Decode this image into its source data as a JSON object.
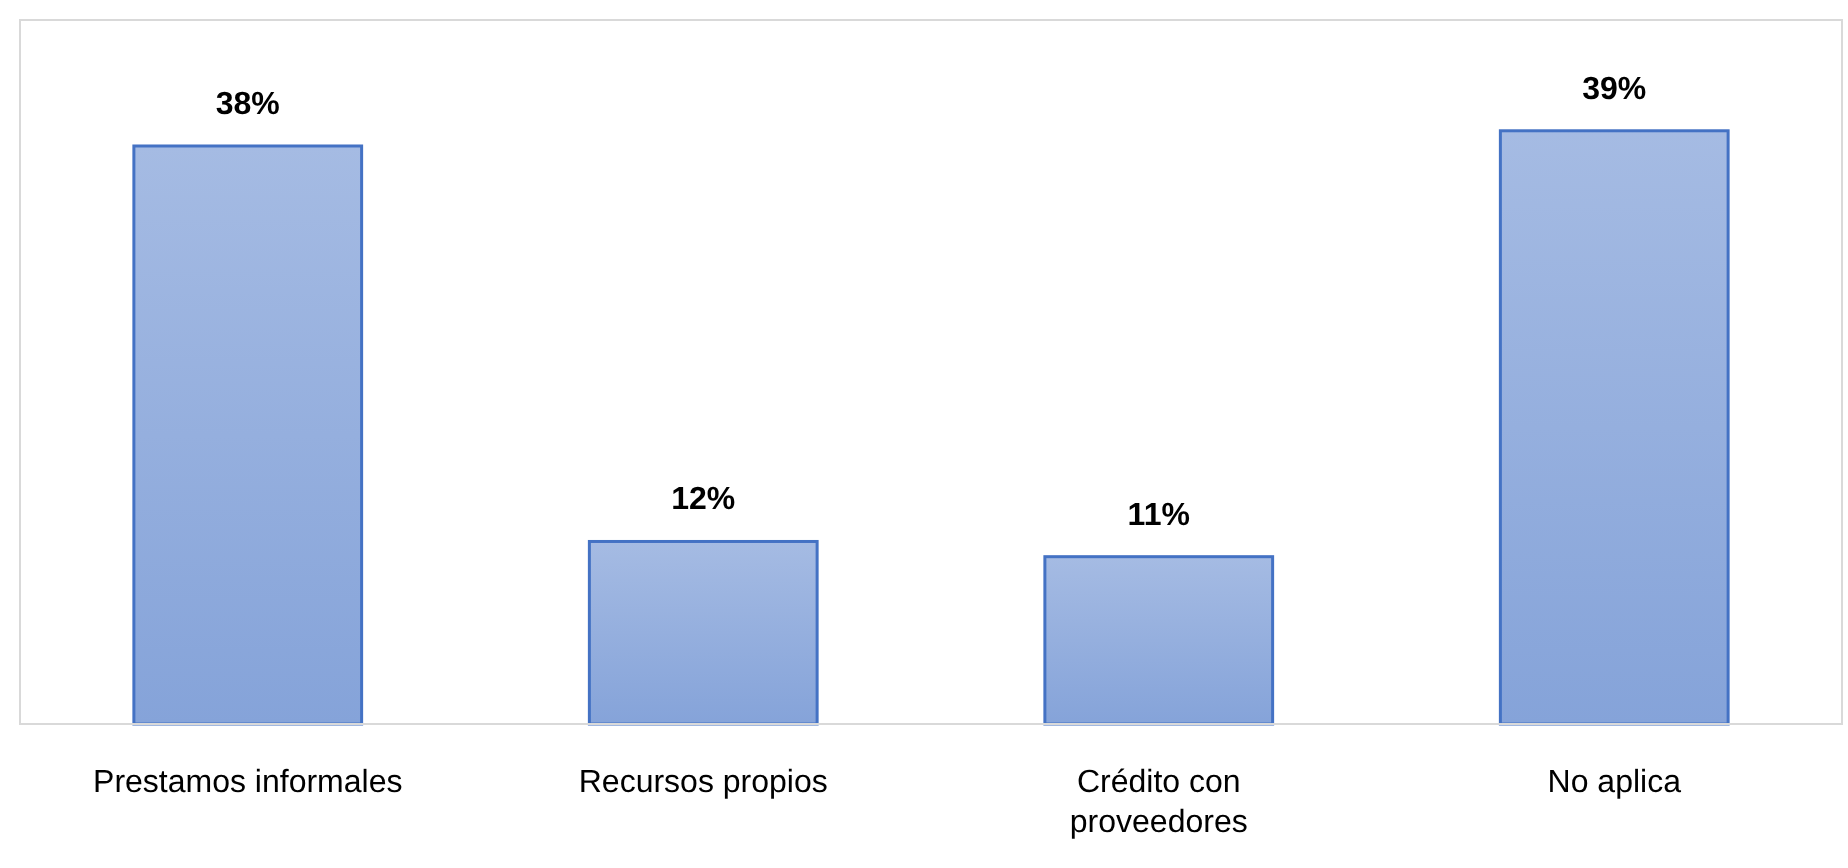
{
  "chart_data": {
    "type": "bar",
    "categories": [
      "Prestamos informales",
      "Recursos propios",
      "Crédito con proveedores",
      "No aplica"
    ],
    "values": [
      38,
      12,
      11,
      39
    ],
    "value_labels": [
      "38%",
      "12%",
      "11%",
      "39%"
    ],
    "color": "#4472c4"
  }
}
